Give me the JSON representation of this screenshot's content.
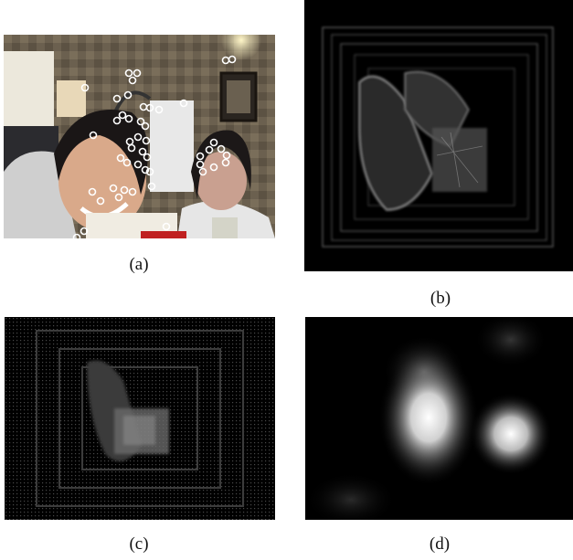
{
  "figure": {
    "panels": [
      {
        "id": "a",
        "caption": "(a)",
        "description": "photo",
        "overlay": "fixation-circles"
      },
      {
        "id": "b",
        "caption": "(b)",
        "description": "gradient-magnitude-map"
      },
      {
        "id": "c",
        "caption": "(c)",
        "description": "dotted-grid-saliency-map"
      },
      {
        "id": "d",
        "caption": "(d)",
        "description": "blurred-saliency-map"
      }
    ]
  }
}
